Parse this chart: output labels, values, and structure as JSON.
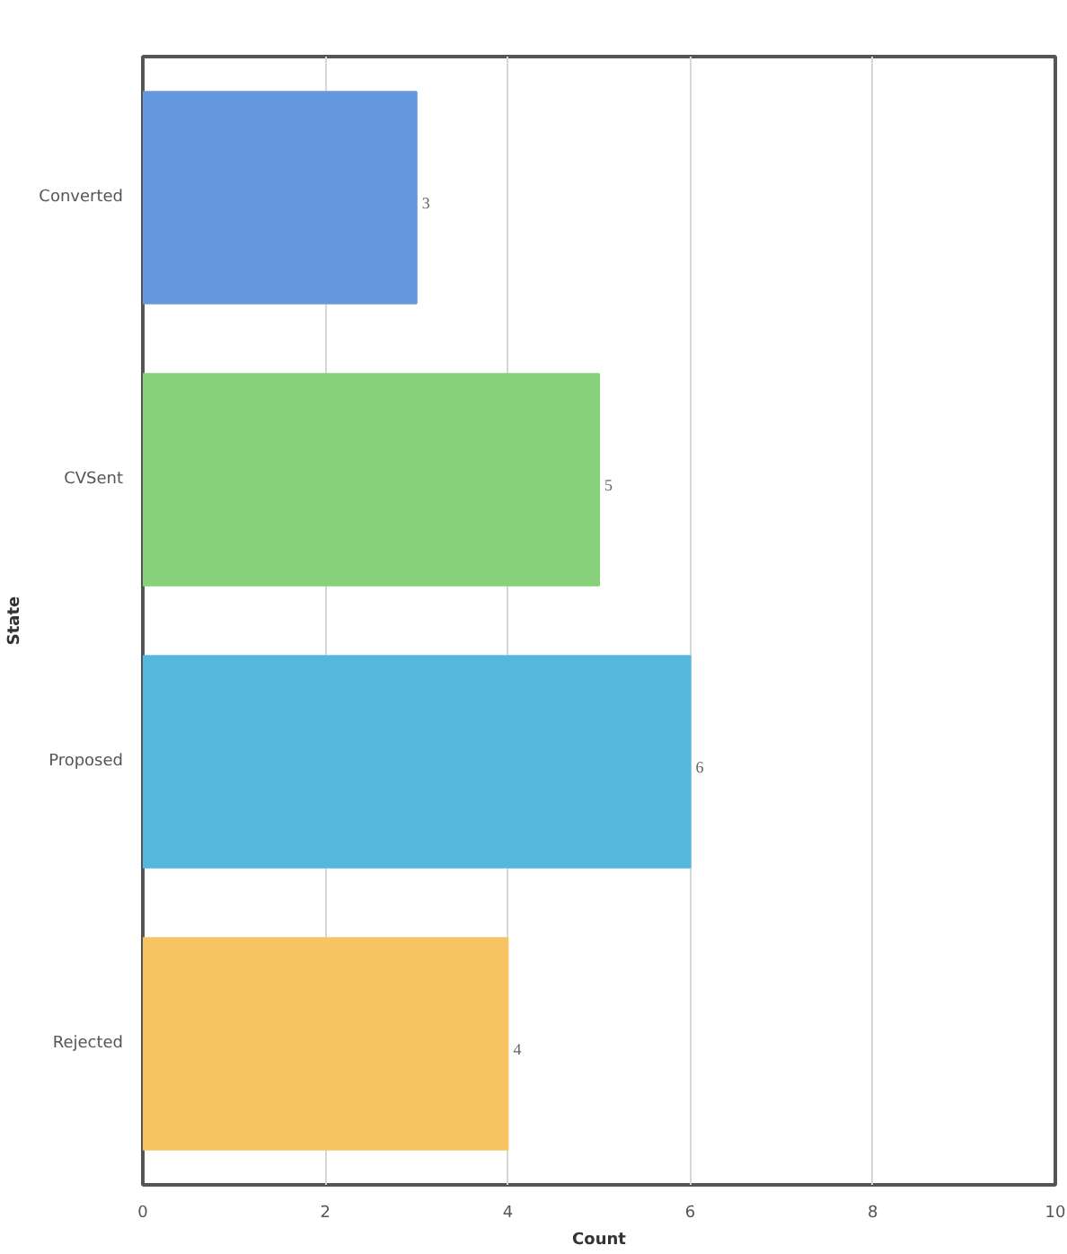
{
  "chart_data": {
    "type": "bar",
    "orientation": "horizontal",
    "xlabel": "Count",
    "ylabel": "State",
    "categories": [
      "Converted",
      "CVSent",
      "Proposed",
      "Rejected"
    ],
    "values": [
      3,
      5,
      6,
      4
    ],
    "colors": [
      "#6499e0",
      "#87d17a",
      "#55b9de",
      "#f6c462"
    ],
    "xlim": [
      0,
      10
    ],
    "xticks": [
      0,
      2,
      4,
      6,
      8,
      10
    ],
    "grid": "x",
    "data_labels": true
  }
}
